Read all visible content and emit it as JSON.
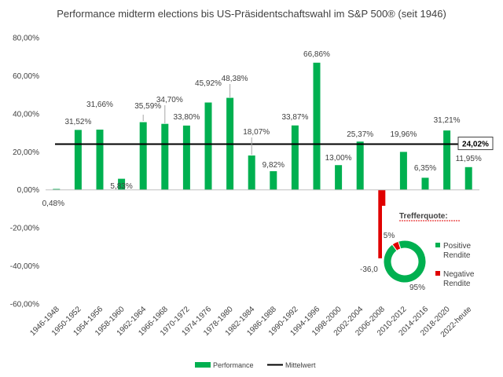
{
  "chart_data": {
    "type": "bar",
    "title": "Performance midterm elections bis US-Präsidentschaftswahl im S&P 500® (seit 1946)",
    "categories": [
      "1946-1948",
      "1950-1952",
      "1954-1956",
      "1958-1960",
      "1962-1964",
      "1966-1968",
      "1970-1972",
      "1974-1976",
      "1978-1980",
      "1982-1984",
      "1986-1988",
      "1990-1992",
      "1994-1996",
      "1998-2000",
      "2002-2004",
      "2006-2008",
      "2010-2012",
      "2014-2016",
      "2018-2020",
      "2022-heute"
    ],
    "values": [
      0.48,
      31.52,
      31.66,
      5.83,
      35.59,
      34.7,
      33.8,
      45.92,
      48.38,
      18.07,
      9.82,
      33.87,
      66.86,
      13.0,
      25.37,
      -36.0,
      19.96,
      6.35,
      31.21,
      11.95
    ],
    "value_labels": [
      "0,48%",
      "31,52%",
      "31,66%",
      "5,83%",
      "35,59%",
      "34,70%",
      "33,80%",
      "45,92%",
      "48,38%",
      "18,07%",
      "9,82%",
      "33,87%",
      "66,86%",
      "13,00%",
      "25,37%",
      "-36,0",
      "19,96%",
      "6,35%",
      "31,21%",
      "11,95%"
    ],
    "ylim": [
      -60,
      80
    ],
    "yticks": [
      -60,
      -40,
      -20,
      0,
      20,
      40,
      60,
      80
    ],
    "ytick_labels": [
      "-60,00%",
      "-40,00%",
      "-20,00%",
      "0,00%",
      "20,00%",
      "40,00%",
      "60,00%",
      "80,00%"
    ],
    "mean_value": 24.02,
    "mean_label": "24,02%",
    "legend": {
      "performance": "Performance",
      "mean": "Mittelwert"
    },
    "legend_position": "bottom",
    "grid": false,
    "colors": {
      "positive": "#00b050",
      "negative": "#e00000",
      "mean_line": "#000000"
    },
    "inset": {
      "type": "pie",
      "title": "Trefferquote:",
      "slices": [
        {
          "name": "Positive Rendite",
          "legend_lines": [
            "Positive",
            "Rendite"
          ],
          "value": 95,
          "label": "95%",
          "color": "#00b050"
        },
        {
          "name": "Negative Rendite",
          "legend_lines": [
            "Negative",
            "Rendite"
          ],
          "value": 5,
          "label": "5%",
          "color": "#e00000"
        }
      ]
    }
  }
}
